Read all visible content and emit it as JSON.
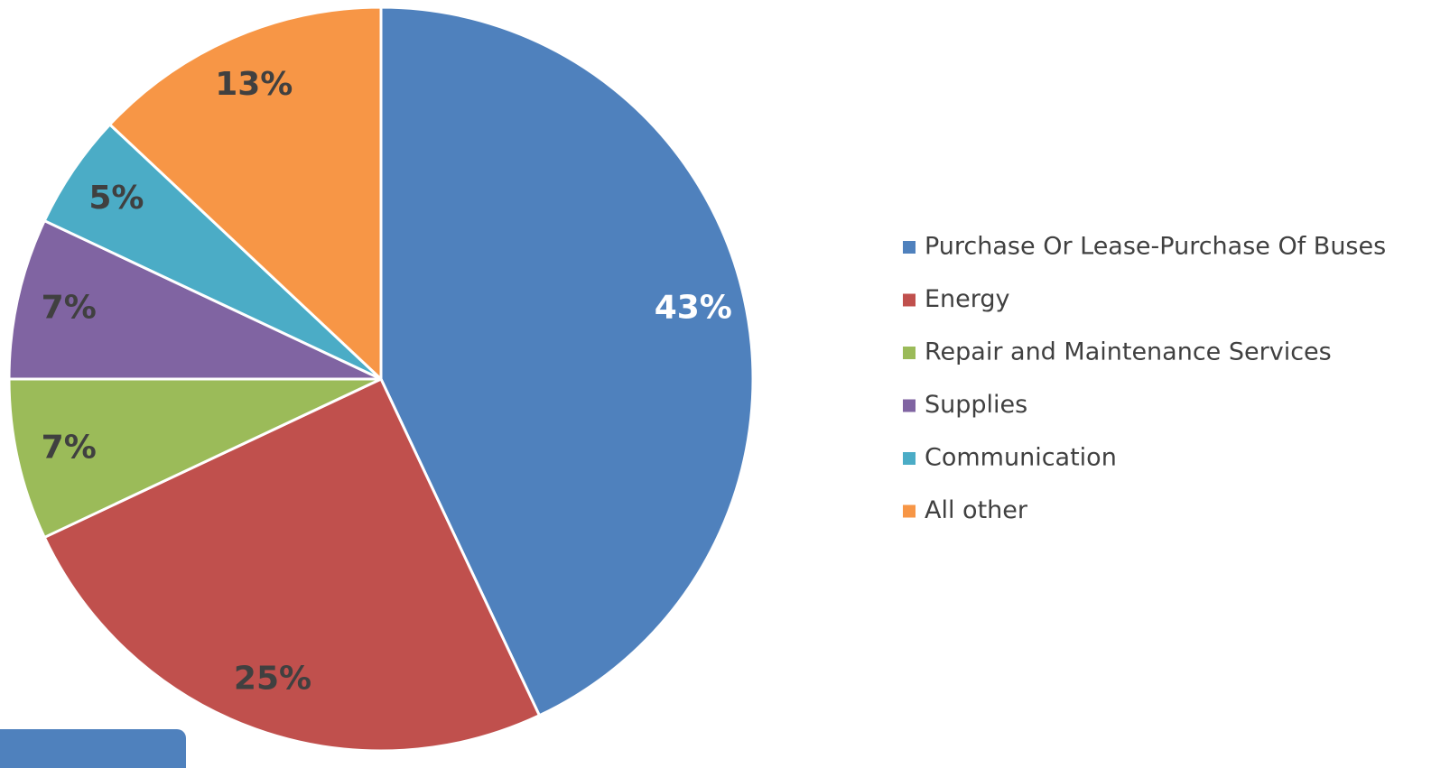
{
  "chart_data": {
    "type": "pie",
    "categories": [
      "Purchase Or Lease-Purchase Of Buses",
      "Energy",
      "Repair and Maintenance Services",
      "Supplies",
      "Communication",
      "All other"
    ],
    "values": [
      43,
      25,
      7,
      7,
      5,
      13
    ],
    "value_labels": [
      "43%",
      "25%",
      "7%",
      "7%",
      "5%",
      "13%"
    ],
    "colors": [
      "#4f81bd",
      "#c0504d",
      "#9bbb59",
      "#8064a2",
      "#4bacc6",
      "#f79646"
    ],
    "label_colors": [
      "#ffffff",
      "#404040",
      "#404040",
      "#404040",
      "#404040",
      "#404040"
    ],
    "legend": "right"
  }
}
